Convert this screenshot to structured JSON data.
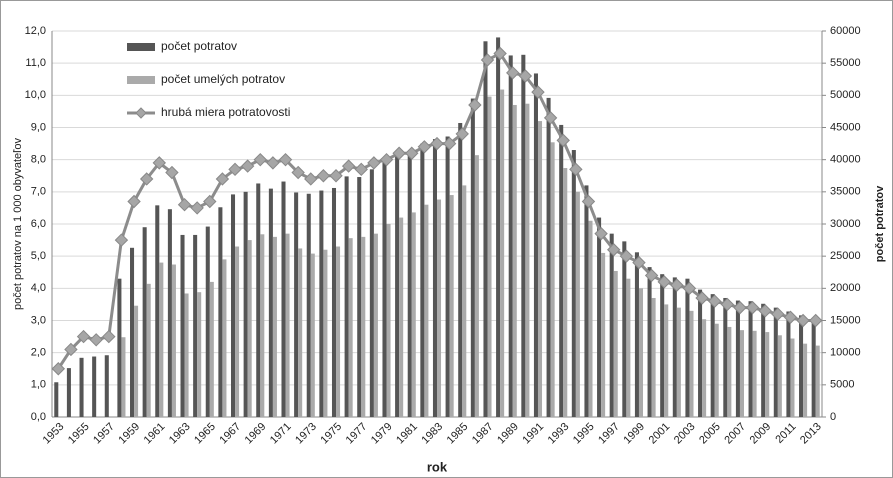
{
  "chart_data": {
    "type": "bar_line",
    "x_label": "rok",
    "y_label": "počet potratov na 1 000 obyvateľov",
    "y2_label": "počet potratov",
    "categories": [
      "1953",
      null,
      "1955",
      null,
      "1957",
      null,
      "1959",
      null,
      "1961",
      null,
      "1963",
      null,
      "1965",
      null,
      "1967",
      null,
      "1969",
      null,
      "1971",
      null,
      "1973",
      null,
      "1975",
      null,
      "1977",
      null,
      "1979",
      null,
      "1981",
      null,
      "1983",
      null,
      "1985",
      null,
      "1987",
      null,
      "1989",
      null,
      "1991",
      null,
      "1993",
      null,
      "1995",
      null,
      "1997",
      null,
      "1999",
      null,
      "2001",
      null,
      "2003",
      null,
      "2005",
      null,
      "2007",
      null,
      "2009",
      null,
      "2011",
      null,
      "2013"
    ],
    "series": [
      {
        "name": "počet potratov",
        "color": "#555555",
        "axis": "y2",
        "kind": "bar",
        "values": [
          5400,
          7600,
          9200,
          9400,
          9600,
          21500,
          26300,
          29500,
          32900,
          32300,
          28300,
          28300,
          29600,
          32600,
          34600,
          35000,
          36300,
          35500,
          36600,
          34900,
          34700,
          35200,
          35600,
          37400,
          37300,
          38500,
          39800,
          40600,
          41000,
          42500,
          43200,
          43600,
          45700,
          49500,
          58400,
          59000,
          56200,
          56300,
          53400,
          49600,
          45400,
          41500,
          36000,
          31000,
          28500,
          27300,
          25600,
          23300,
          22200,
          21700,
          21500,
          19800,
          19100,
          18500,
          18100,
          18000,
          17600,
          17000,
          16400,
          15800,
          15400
        ]
      },
      {
        "name": "počet umelých potratov",
        "color": "#aaaaaa",
        "axis": "y2",
        "kind": "bar",
        "values": [
          null,
          null,
          null,
          null,
          null,
          12400,
          17300,
          20700,
          24000,
          23700,
          19200,
          19400,
          21000,
          24500,
          26500,
          27500,
          28400,
          28000,
          28500,
          26200,
          25400,
          26000,
          26500,
          27800,
          28000,
          28500,
          30000,
          31000,
          31800,
          33000,
          33800,
          34500,
          36000,
          40700,
          49800,
          50900,
          48500,
          48700,
          46000,
          42700,
          38700,
          35000,
          30500,
          25500,
          22700,
          21500,
          20000,
          18500,
          17500,
          17000,
          16500,
          15200,
          14500,
          14000,
          13500,
          13400,
          13200,
          12700,
          12200,
          11400,
          11100
        ]
      },
      {
        "name": "hrubá miera potratovosti",
        "color": "#8c8c8c",
        "axis": "y",
        "kind": "line",
        "values": [
          1.5,
          2.1,
          2.5,
          2.4,
          2.5,
          5.5,
          6.7,
          7.4,
          7.9,
          7.6,
          6.6,
          6.5,
          6.7,
          7.4,
          7.7,
          7.8,
          8.0,
          7.9,
          8.0,
          7.6,
          7.4,
          7.5,
          7.5,
          7.8,
          7.7,
          7.9,
          8.0,
          8.2,
          8.2,
          8.4,
          8.5,
          8.5,
          8.8,
          9.7,
          11.1,
          11.3,
          10.7,
          10.6,
          10.1,
          9.3,
          8.6,
          7.7,
          6.7,
          5.7,
          5.2,
          5.0,
          4.8,
          4.4,
          4.2,
          4.1,
          4.0,
          3.7,
          3.6,
          3.5,
          3.4,
          3.4,
          3.3,
          3.2,
          3.1,
          3.0,
          3.0
        ]
      }
    ],
    "ylim": [
      0,
      12
    ],
    "yticks": [
      {
        "value": 0,
        "label": "0,0"
      },
      {
        "value": 1,
        "label": "1,0"
      },
      {
        "value": 2,
        "label": "2,0"
      },
      {
        "value": 3,
        "label": "3,0"
      },
      {
        "value": 4,
        "label": "4,0"
      },
      {
        "value": 5,
        "label": "5,0"
      },
      {
        "value": 6,
        "label": "6,0"
      },
      {
        "value": 7,
        "label": "7,0"
      },
      {
        "value": 8,
        "label": "8,0"
      },
      {
        "value": 9,
        "label": "9,0"
      },
      {
        "value": 10,
        "label": "10,0"
      },
      {
        "value": 11,
        "label": "11,0"
      },
      {
        "value": 12,
        "label": "12,0"
      }
    ],
    "y2lim": [
      0,
      60000
    ],
    "y2ticks": [
      0,
      5000,
      10000,
      15000,
      20000,
      25000,
      30000,
      35000,
      40000,
      45000,
      50000,
      55000,
      60000
    ],
    "grid": true,
    "legend": "top-left"
  }
}
